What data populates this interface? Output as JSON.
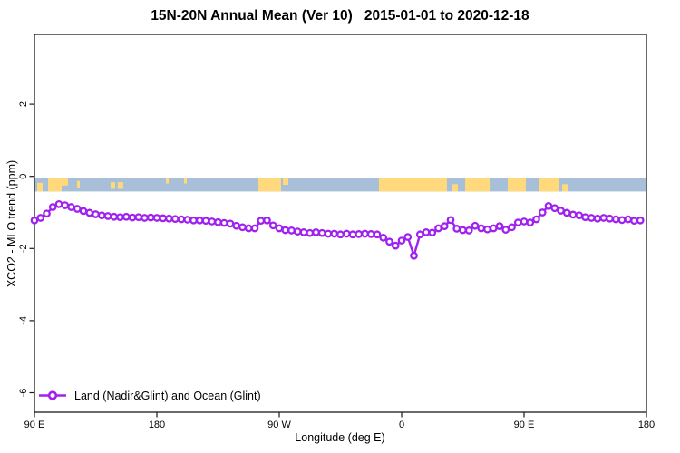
{
  "header": {
    "title": "15N-20N Annual Mean (Ver 10)",
    "date_range": "2015-01-01 to 2020-12-18"
  },
  "axes": {
    "x_label": "Longitude (deg E)",
    "y_label": "XCO2 - MLO trend (ppm)",
    "x_ticks": [
      {
        "label": "90 E",
        "lon": 90
      },
      {
        "label": "180",
        "lon": 180
      },
      {
        "label": "90 W",
        "lon": 270
      },
      {
        "label": "0",
        "lon": 360
      },
      {
        "label": "90 E",
        "lon": 450
      },
      {
        "label": "180",
        "lon": 540
      }
    ],
    "y_ticks": [
      {
        "label": "2",
        "value": 2
      },
      {
        "label": "0",
        "value": 0
      },
      {
        "label": "-2",
        "value": -2
      },
      {
        "label": "-4",
        "value": -4
      },
      {
        "label": "-6",
        "value": -6
      }
    ]
  },
  "legend": {
    "label": "Land (Nadir&Glint) and Ocean (Glint)"
  },
  "colors": {
    "line": "#A020F0",
    "marker_fill": "#FFFFFF",
    "ocean_band": "#A8BFD9",
    "land_band": "#FFD97C",
    "frame": "#1A1A1A"
  },
  "chart_data": {
    "type": "line",
    "title": "15N-20N Annual Mean (Ver 10)  2015-01-01 to 2020-12-18",
    "xlabel": "Longitude (deg E)",
    "ylabel": "XCO2 - MLO trend (ppm)",
    "xlim": [
      90,
      540
    ],
    "ylim": [
      -6.6,
      3.9
    ],
    "x_axis_note": "longitude axis wraps eastward: 90E, 180, 90W, 0, 90E, 180",
    "legend_position": "bottom-left inside plot",
    "grid": false,
    "series": [
      {
        "name": "Land (Nadir&Glint) and Ocean (Glint)",
        "marker": "open-circle",
        "x": [
          90,
          94.5,
          99,
          103.5,
          108,
          112.5,
          117,
          121.5,
          126,
          130.5,
          135,
          139.5,
          144,
          148.5,
          153,
          157.5,
          162,
          166.5,
          171,
          175.5,
          180,
          184.5,
          189,
          193.5,
          198,
          202.5,
          207,
          211.5,
          216,
          220.5,
          225,
          229.5,
          234,
          238.5,
          243,
          247.5,
          252,
          256.5,
          261,
          265.5,
          270,
          274.5,
          279,
          283.5,
          288,
          292.5,
          297,
          301.5,
          306,
          310.5,
          315,
          319.5,
          324,
          328.5,
          333,
          337.5,
          342,
          346.5,
          351,
          355.5,
          360,
          364.5,
          369,
          373.5,
          378,
          382.5,
          387,
          391.5,
          396,
          400.5,
          405,
          409.5,
          414,
          418.5,
          423,
          427.5,
          432,
          436.5,
          441,
          445.5,
          450,
          454.5,
          459,
          463.5,
          468,
          472.5,
          477,
          481.5,
          486,
          490.5,
          495,
          499.5,
          504,
          508.5,
          513,
          517.5,
          522,
          526.5,
          531,
          535.5
        ],
        "values": [
          -1.22,
          -1.15,
          -1.03,
          -0.85,
          -0.77,
          -0.8,
          -0.85,
          -0.9,
          -0.96,
          -1.01,
          -1.05,
          -1.08,
          -1.1,
          -1.12,
          -1.13,
          -1.12,
          -1.14,
          -1.13,
          -1.15,
          -1.14,
          -1.15,
          -1.16,
          -1.17,
          -1.18,
          -1.19,
          -1.2,
          -1.22,
          -1.22,
          -1.23,
          -1.25,
          -1.27,
          -1.29,
          -1.31,
          -1.37,
          -1.41,
          -1.44,
          -1.44,
          -1.23,
          -1.22,
          -1.36,
          -1.44,
          -1.49,
          -1.5,
          -1.53,
          -1.55,
          -1.57,
          -1.55,
          -1.57,
          -1.59,
          -1.59,
          -1.61,
          -1.59,
          -1.61,
          -1.6,
          -1.59,
          -1.6,
          -1.61,
          -1.7,
          -1.81,
          -1.92,
          -1.78,
          -1.68,
          -2.2,
          -1.61,
          -1.55,
          -1.56,
          -1.44,
          -1.38,
          -1.21,
          -1.45,
          -1.49,
          -1.5,
          -1.37,
          -1.44,
          -1.47,
          -1.44,
          -1.38,
          -1.48,
          -1.41,
          -1.28,
          -1.25,
          -1.28,
          -1.19,
          -1.0,
          -0.82,
          -0.88,
          -0.95,
          -1.01,
          -1.06,
          -1.08,
          -1.13,
          -1.15,
          -1.17,
          -1.15,
          -1.17,
          -1.19,
          -1.21,
          -1.19,
          -1.23,
          -1.22
        ]
      }
    ],
    "surface_band": {
      "description": "land(orange)/ocean(blue) strip at 15N-20N drawn just below y=0",
      "value_top": -0.05,
      "value_bottom": -0.42,
      "land_segments": [
        {
          "lon0": 92,
          "lon1": 96,
          "top": 0.35,
          "bot": 1
        },
        {
          "lon0": 100,
          "lon1": 110,
          "top": 0,
          "bot": 1
        },
        {
          "lon0": 110,
          "lon1": 114.7,
          "top": 0,
          "bot": 0.55
        },
        {
          "lon0": 121.3,
          "lon1": 123.3,
          "top": 0.2,
          "bot": 0.75
        },
        {
          "lon0": 146,
          "lon1": 149.3,
          "top": 0.3,
          "bot": 0.8
        },
        {
          "lon0": 151.3,
          "lon1": 155.3,
          "top": 0.3,
          "bot": 0.8
        },
        {
          "lon0": 186.7,
          "lon1": 188.7,
          "top": 0,
          "bot": 0.4
        },
        {
          "lon0": 200,
          "lon1": 202,
          "top": 0,
          "bot": 0.4
        },
        {
          "lon0": 254.7,
          "lon1": 271.3,
          "top": 0,
          "bot": 1
        },
        {
          "lon0": 272.7,
          "lon1": 276.7,
          "top": 0,
          "bot": 0.5
        },
        {
          "lon0": 343.3,
          "lon1": 393.3,
          "top": 0,
          "bot": 1
        },
        {
          "lon0": 396.7,
          "lon1": 401.3,
          "top": 0.45,
          "bot": 1
        },
        {
          "lon0": 406.7,
          "lon1": 424.7,
          "top": 0,
          "bot": 1
        },
        {
          "lon0": 438,
          "lon1": 451.3,
          "top": 0,
          "bot": 1
        },
        {
          "lon0": 461.3,
          "lon1": 476,
          "top": 0,
          "bot": 1
        },
        {
          "lon0": 478,
          "lon1": 482.7,
          "top": 0.45,
          "bot": 1
        }
      ]
    }
  }
}
